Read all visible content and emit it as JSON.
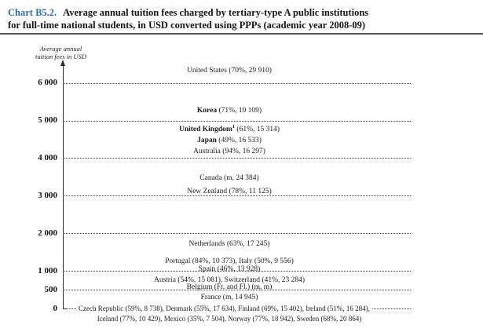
{
  "title": {
    "prefix": "Chart B5.2.",
    "line1": "Average annual tuition fees charged by tertiary-type A public institutions",
    "line2": "for full-time national students, in USD converted using PPPs (academic year 2008-09)"
  },
  "colors": {
    "accent_blue": "#2d6ca5",
    "text": "#1b1b1b",
    "divider": "#515154",
    "grid_dots": "#3a3a3a"
  },
  "chart_data": {
    "type": "scatter",
    "title": "Average annual tuition fees charged by tertiary-type A public institutions for full-time national students, in USD converted using PPPs (academic year 2008-09)",
    "ylabel": "Average annual tuition fees in USD",
    "ylabel_line1": "Average annual",
    "ylabel_line2": "tuition fees in USD",
    "ylim": [
      0,
      6500
    ],
    "grid": "horizontal dotted lines at each y tick",
    "legend": "none",
    "note": "Each country label is placed vertically at its average tuition-fee level; the United States label sits above the 6 000 axis maximum next to the axis arrow. The zero-fee group occupies two lines at the 0 line.",
    "yticks": [
      {
        "label": "6 000",
        "value": 6000
      },
      {
        "label": "5 000",
        "value": 5000
      },
      {
        "label": "4 000",
        "value": 4000
      },
      {
        "label": "3 000",
        "value": 3000
      },
      {
        "label": "2 000",
        "value": 2000
      },
      {
        "label": "1 000",
        "value": 1000
      },
      {
        "label": "500",
        "value": 500
      },
      {
        "label": "0",
        "value": 0
      }
    ],
    "rows": [
      {
        "y_usd": 6325,
        "bold_part": "",
        "sup": "",
        "text": "United States (70%, 29 910)",
        "countries": [
          {
            "name": "United States",
            "v1": "70%",
            "v2": "29 910"
          }
        ]
      },
      {
        "y_usd": 5250,
        "bold_part": "Korea",
        "sup": "",
        "text": " (71%, 10 109)",
        "countries": [
          {
            "name": "Korea",
            "v1": "71%",
            "v2": "10 109"
          }
        ]
      },
      {
        "y_usd": 4740,
        "bold_part": "United Kingdom",
        "sup": "1",
        "text": " (61%, 15 314)",
        "countries": [
          {
            "name": "United Kingdom",
            "footnote": "1",
            "v1": "61%",
            "v2": "15 314"
          }
        ]
      },
      {
        "y_usd": 4450,
        "bold_part": "Japan",
        "sup": "",
        "text": " (49%, 16 533)",
        "countries": [
          {
            "name": "Japan",
            "v1": "49%",
            "v2": "16 533"
          }
        ]
      },
      {
        "y_usd": 4175,
        "bold_part": "",
        "sup": "",
        "text": "Australia (94%, 16 297)",
        "countries": [
          {
            "name": "Australia",
            "v1": "94%",
            "v2": "16 297"
          }
        ]
      },
      {
        "y_usd": 3465,
        "bold_part": "",
        "sup": "",
        "text": "Canada (m, 24 384)",
        "countries": [
          {
            "name": "Canada",
            "v1": "m",
            "v2": "24 384"
          }
        ]
      },
      {
        "y_usd": 3090,
        "bold_part": "",
        "sup": "",
        "text": "New Zealand (78%, 11 125)",
        "countries": [
          {
            "name": "New Zealand",
            "v1": "78%",
            "v2": "11 125"
          }
        ]
      },
      {
        "y_usd": 1710,
        "bold_part": "",
        "sup": "",
        "text": "Netherlands (63%, 17 245)",
        "countries": [
          {
            "name": "Netherlands",
            "v1": "63%",
            "v2": "17 245"
          }
        ]
      },
      {
        "y_usd": 1250,
        "bold_part": "",
        "sup": "",
        "text": "Portugal (84%, 10 373), Italy (50%, 9 556)",
        "countries": [
          {
            "name": "Portugal",
            "v1": "84%",
            "v2": "10 373"
          },
          {
            "name": "Italy",
            "v1": "50%",
            "v2": "9 556"
          }
        ]
      },
      {
        "y_usd": 1035,
        "bold_part": "",
        "sup": "",
        "text": "Spain (46%, 13 928)",
        "countries": [
          {
            "name": "Spain",
            "v1": "46%",
            "v2": "13 928"
          }
        ]
      },
      {
        "y_usd": 750,
        "bold_part": "",
        "sup": "",
        "text": "Austria (54%, 15 081), Switzerland (41%, 23 284)",
        "countries": [
          {
            "name": "Austria",
            "v1": "54%",
            "v2": "15 081"
          },
          {
            "name": "Switzerland",
            "v1": "41%",
            "v2": "23 284"
          }
        ]
      },
      {
        "y_usd": 555,
        "bold_part": "",
        "sup": "",
        "text": "Belgium (Fr. and Fl.) (m, m)",
        "countries": [
          {
            "name": "Belgium (Fr. and Fl.)",
            "v1": "m",
            "v2": "m"
          }
        ]
      },
      {
        "y_usd": 290,
        "bold_part": "",
        "sup": "",
        "text": "France (m, 14 945)",
        "countries": [
          {
            "name": "France",
            "v1": "m",
            "v2": "14 945"
          }
        ]
      },
      {
        "y_usd": 0,
        "leaders": true,
        "bold_part": "",
        "sup": "",
        "text": "Czech Republic (59%, 8 738), Denmark (55%, 17 634), Finland (69%, 15 402), Ireland (51%, 16 284),",
        "countries": [
          {
            "name": "Czech Republic",
            "v1": "59%",
            "v2": "8 738"
          },
          {
            "name": "Denmark",
            "v1": "55%",
            "v2": "17 634"
          },
          {
            "name": "Finland",
            "v1": "69%",
            "v2": "15 402"
          },
          {
            "name": "Ireland",
            "v1": "51%",
            "v2": "16 284"
          }
        ]
      },
      {
        "y_usd": 0,
        "line2": true,
        "bold_part": "",
        "sup": "",
        "text": "Iceland (77%, 10 429), Mexico (35%, 7 504), Norway (77%, 18 942), Sweden (68%, 20 864)",
        "countries": [
          {
            "name": "Iceland",
            "v1": "77%",
            "v2": "10 429"
          },
          {
            "name": "Mexico",
            "v1": "35%",
            "v2": "7 504"
          },
          {
            "name": "Norway",
            "v1": "77%",
            "v2": "18 942"
          },
          {
            "name": "Sweden",
            "v1": "68%",
            "v2": "20 864"
          }
        ]
      }
    ]
  }
}
